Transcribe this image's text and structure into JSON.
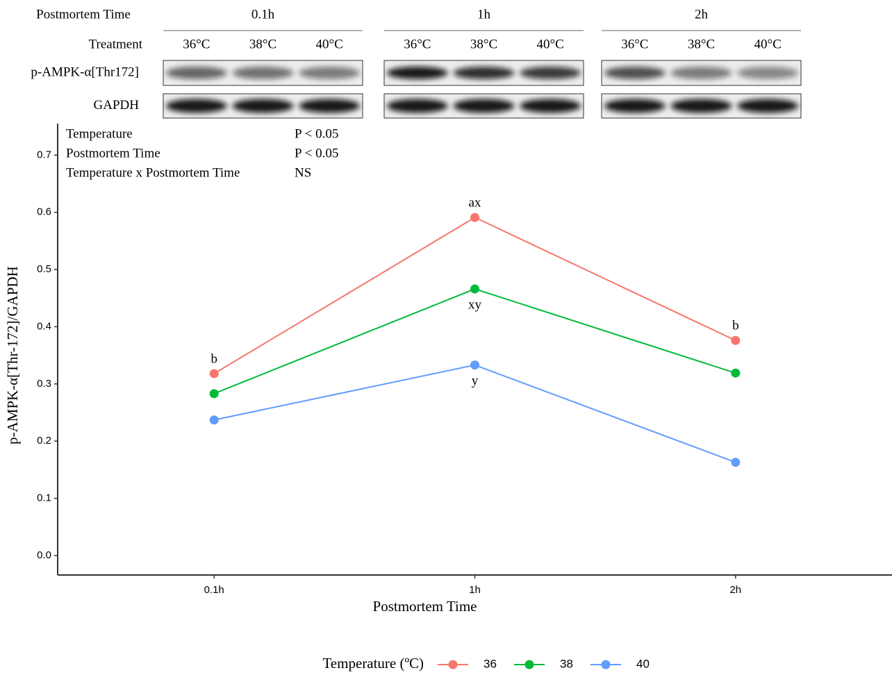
{
  "blot": {
    "header_label": "Postmortem Time",
    "treatment_label": "Treatment",
    "groups": [
      {
        "time": "0.1h",
        "lanes": [
          "36°C",
          "38°C",
          "40°C"
        ]
      },
      {
        "time": "1h",
        "lanes": [
          "36°C",
          "38°C",
          "40°C"
        ]
      },
      {
        "time": "2h",
        "lanes": [
          "36°C",
          "38°C",
          "40°C"
        ]
      }
    ],
    "rows": [
      "p-AMPK-α[Thr172]",
      "GAPDH"
    ]
  },
  "stats": [
    {
      "effect": "Temperature",
      "result": "P < 0.05"
    },
    {
      "effect": "Postmortem Time",
      "result": "P < 0.05"
    },
    {
      "effect": "Temperature x Postmortem Time",
      "result": "NS"
    }
  ],
  "chart_data": {
    "type": "line",
    "x_label": "Postmortem Time",
    "y_label": "p-AMPK-α[Thr-172]/GAPDH",
    "categories": [
      "0.1h",
      "1h",
      "2h"
    ],
    "series": [
      {
        "name": "36",
        "color": "#F8766D",
        "values": [
          0.318,
          0.591,
          0.376
        ],
        "letters": [
          "b",
          "ax",
          "b"
        ]
      },
      {
        "name": "38",
        "color": "#00BA38",
        "values": [
          0.283,
          0.466,
          0.319
        ],
        "letters": [
          null,
          "xy",
          null
        ]
      },
      {
        "name": "40",
        "color": "#619CFF",
        "values": [
          0.237,
          0.333,
          0.163
        ],
        "letters": [
          null,
          "y",
          null
        ]
      }
    ],
    "ylim": [
      -0.034,
      0.755
    ],
    "yticks": [
      {
        "value": 0,
        "label": "0.0"
      },
      0.1,
      0.2,
      0.3,
      0.4,
      0.5,
      0.6,
      0.7
    ],
    "legend": {
      "title": "Temperature (ºC)",
      "position": "bottom"
    }
  }
}
